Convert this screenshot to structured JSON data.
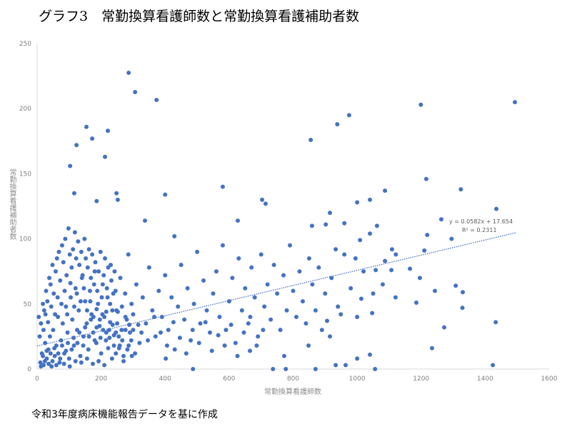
{
  "title": "グラフ3　常勤換算看護師数と常勤換算看護補助者数",
  "footer": "令和3年度病床機能報告データを基に作成",
  "chart_data": {
    "type": "scatter",
    "title": "グラフ3　常勤換算看護師数と常勤換算看護補助者数",
    "xlabel": "常勤換算看護師数",
    "ylabel": "常勤換算看護補助者数",
    "xlim": [
      0,
      1600
    ],
    "ylim": [
      0,
      250
    ],
    "xticks": [
      "0",
      "200",
      "400",
      "600",
      "800",
      "1000",
      "1200",
      "1400",
      "1600"
    ],
    "yticks": [
      "0",
      "50",
      "100",
      "150",
      "200",
      "250"
    ],
    "grid": false,
    "marker_color": "#4472C4",
    "trendline": {
      "type": "linear",
      "slope": 0.0582,
      "intercept": 17.654,
      "x_range": [
        0,
        1495
      ],
      "equation": "y = 0.0582x + 17.654",
      "r2": "R² = 0.2311",
      "color": "#4472C4"
    },
    "points": [
      [
        286,
        227.5
      ],
      [
        306,
        212.7
      ],
      [
        373,
        206.7
      ],
      [
        154,
        186
      ],
      [
        172,
        177
      ],
      [
        221,
        183
      ],
      [
        123,
        172
      ],
      [
        212,
        163
      ],
      [
        103,
        156
      ],
      [
        400,
        134
      ],
      [
        116,
        135
      ],
      [
        248,
        135
      ],
      [
        186,
        129
      ],
      [
        252,
        130
      ],
      [
        580,
        140
      ],
      [
        703,
        130
      ],
      [
        714,
        127
      ],
      [
        627,
        114
      ],
      [
        337,
        114
      ],
      [
        429,
        102
      ],
      [
        855,
        176
      ],
      [
        938,
        188
      ],
      [
        975,
        195
      ],
      [
        1199,
        203
      ],
      [
        1493,
        205
      ],
      [
        1216,
        146
      ],
      [
        1324,
        138
      ],
      [
        1435,
        123
      ],
      [
        1087,
        137
      ],
      [
        1000,
        128
      ],
      [
        1040,
        130
      ],
      [
        1263,
        115
      ],
      [
        1219,
        103
      ],
      [
        1295,
        100
      ],
      [
        1210,
        91
      ],
      [
        1121,
        88
      ],
      [
        1107,
        76
      ],
      [
        1165,
        77
      ],
      [
        1196,
        70
      ],
      [
        1120,
        55
      ],
      [
        1185,
        51
      ],
      [
        1243,
        60
      ],
      [
        1308,
        64
      ],
      [
        1330,
        59
      ],
      [
        1329,
        47
      ],
      [
        1272,
        32
      ],
      [
        1234,
        16
      ],
      [
        1433,
        36
      ],
      [
        1424,
        3
      ],
      [
        1056,
        0
      ],
      [
        1040,
        11
      ],
      [
        1000,
        8
      ],
      [
        964,
        3
      ],
      [
        933,
        3
      ],
      [
        870,
        0
      ],
      [
        915,
        25
      ],
      [
        1062,
        110
      ],
      [
        1040,
        104
      ],
      [
        1009,
        99
      ],
      [
        960,
        112
      ],
      [
        915,
        120
      ],
      [
        902,
        111
      ],
      [
        859,
        110
      ],
      [
        933,
        92
      ],
      [
        995,
        85
      ],
      [
        1058,
        76
      ],
      [
        1087,
        83
      ],
      [
        1109,
        92
      ],
      [
        1013,
        54
      ],
      [
        1047,
        43
      ],
      [
        949,
        42
      ],
      [
        906,
        37
      ],
      [
        848,
        18
      ],
      [
        772,
        10
      ],
      [
        777,
        0
      ],
      [
        737,
        0
      ],
      [
        665,
        14
      ],
      [
        487,
        0
      ],
      [
        402,
        8
      ],
      [
        10,
        5
      ],
      [
        15,
        12
      ],
      [
        20,
        3
      ],
      [
        25,
        20
      ],
      [
        30,
        8
      ],
      [
        35,
        15
      ],
      [
        40,
        25
      ],
      [
        45,
        2
      ],
      [
        50,
        30
      ],
      [
        55,
        10
      ],
      [
        60,
        18
      ],
      [
        65,
        40
      ],
      [
        70,
        5
      ],
      [
        75,
        22
      ],
      [
        80,
        35
      ],
      [
        85,
        12
      ],
      [
        90,
        48
      ],
      [
        95,
        28
      ],
      [
        100,
        8
      ],
      [
        105,
        55
      ],
      [
        110,
        38
      ],
      [
        115,
        18
      ],
      [
        120,
        62
      ],
      [
        125,
        30
      ],
      [
        130,
        45
      ],
      [
        135,
        10
      ],
      [
        140,
        70
      ],
      [
        145,
        25
      ],
      [
        150,
        52
      ],
      [
        155,
        35
      ],
      [
        160,
        15
      ],
      [
        165,
        60
      ],
      [
        170,
        42
      ],
      [
        175,
        28
      ],
      [
        180,
        75
      ],
      [
        185,
        20
      ],
      [
        190,
        50
      ],
      [
        195,
        33
      ],
      [
        200,
        12
      ],
      [
        205,
        65
      ],
      [
        210,
        40
      ],
      [
        215,
        22
      ],
      [
        220,
        55
      ],
      [
        225,
        30
      ],
      [
        230,
        80
      ],
      [
        235,
        45
      ],
      [
        240,
        18
      ],
      [
        245,
        60
      ],
      [
        250,
        35
      ],
      [
        255,
        25
      ],
      [
        260,
        70
      ],
      [
        265,
        48
      ],
      [
        270,
        10
      ],
      [
        275,
        58
      ],
      [
        280,
        38
      ],
      [
        285,
        88
      ],
      [
        290,
        28
      ],
      [
        295,
        50
      ],
      [
        300,
        42
      ],
      [
        310,
        65
      ],
      [
        320,
        20
      ],
      [
        330,
        55
      ],
      [
        340,
        35
      ],
      [
        350,
        78
      ],
      [
        360,
        45
      ],
      [
        370,
        25
      ],
      [
        380,
        60
      ],
      [
        390,
        40
      ],
      [
        400,
        72
      ],
      [
        410,
        30
      ],
      [
        420,
        55
      ],
      [
        430,
        15
      ],
      [
        440,
        48
      ],
      [
        450,
        80
      ],
      [
        460,
        38
      ],
      [
        470,
        62
      ],
      [
        480,
        22
      ],
      [
        490,
        50
      ],
      [
        500,
        90
      ],
      [
        510,
        35
      ],
      [
        520,
        68
      ],
      [
        530,
        45
      ],
      [
        540,
        28
      ],
      [
        550,
        58
      ],
      [
        560,
        75
      ],
      [
        570,
        40
      ],
      [
        580,
        95
      ],
      [
        590,
        30
      ],
      [
        600,
        52
      ],
      [
        610,
        70
      ],
      [
        620,
        20
      ],
      [
        630,
        85
      ],
      [
        640,
        45
      ],
      [
        650,
        62
      ],
      [
        660,
        35
      ],
      [
        670,
        78
      ],
      [
        680,
        55
      ],
      [
        690,
        25
      ],
      [
        700,
        88
      ],
      [
        710,
        48
      ],
      [
        720,
        65
      ],
      [
        730,
        38
      ],
      [
        740,
        80
      ],
      [
        750,
        58
      ],
      [
        760,
        30
      ],
      [
        770,
        72
      ],
      [
        780,
        45
      ],
      [
        790,
        95
      ],
      [
        800,
        60
      ],
      [
        810,
        40
      ],
      [
        820,
        75
      ],
      [
        830,
        52
      ],
      [
        840,
        35
      ],
      [
        850,
        85
      ],
      [
        860,
        65
      ],
      [
        870,
        45
      ],
      [
        880,
        78
      ],
      [
        890,
        30
      ],
      [
        900,
        58
      ],
      [
        920,
        70
      ],
      [
        940,
        48
      ],
      [
        960,
        88
      ],
      [
        980,
        62
      ],
      [
        1000,
        40
      ],
      [
        1020,
        75
      ],
      [
        1050,
        58
      ],
      [
        1080,
        65
      ],
      [
        5,
        40
      ],
      [
        8,
        25
      ],
      [
        12,
        35
      ],
      [
        18,
        50
      ],
      [
        22,
        45
      ],
      [
        28,
        60
      ],
      [
        32,
        52
      ],
      [
        38,
        70
      ],
      [
        42,
        65
      ],
      [
        48,
        80
      ],
      [
        52,
        58
      ],
      [
        58,
        75
      ],
      [
        62,
        85
      ],
      [
        68,
        90
      ],
      [
        72,
        68
      ],
      [
        78,
        95
      ],
      [
        82,
        82
      ],
      [
        88,
        100
      ],
      [
        92,
        72
      ],
      [
        98,
        108
      ],
      [
        102,
        88
      ],
      [
        108,
        78
      ],
      [
        112,
        92
      ],
      [
        118,
        105
      ],
      [
        122,
        85
      ],
      [
        128,
        98
      ],
      [
        132,
        80
      ],
      [
        138,
        90
      ],
      [
        142,
        72
      ],
      [
        148,
        100
      ],
      [
        152,
        85
      ],
      [
        158,
        78
      ],
      [
        162,
        92
      ],
      [
        168,
        70
      ],
      [
        172,
        88
      ],
      [
        178,
        65
      ],
      [
        182,
        82
      ],
      [
        188,
        60
      ],
      [
        192,
        75
      ],
      [
        198,
        90
      ],
      [
        202,
        55
      ],
      [
        208,
        72
      ],
      [
        212,
        85
      ],
      [
        218,
        62
      ],
      [
        222,
        78
      ],
      [
        228,
        50
      ],
      [
        232,
        68
      ],
      [
        238,
        58
      ],
      [
        242,
        75
      ],
      [
        248,
        45
      ],
      [
        12,
        2
      ],
      [
        18,
        10
      ],
      [
        24,
        6
      ],
      [
        30,
        14
      ],
      [
        36,
        4
      ],
      [
        42,
        12
      ],
      [
        48,
        6
      ],
      [
        54,
        16
      ],
      [
        60,
        3
      ],
      [
        66,
        12
      ],
      [
        72,
        8
      ],
      [
        78,
        18
      ],
      [
        84,
        4
      ],
      [
        90,
        14
      ],
      [
        96,
        20
      ],
      [
        102,
        2
      ],
      [
        108,
        15
      ],
      [
        114,
        24
      ],
      [
        120,
        6
      ],
      [
        126,
        20
      ],
      [
        132,
        28
      ],
      [
        138,
        5
      ],
      [
        144,
        18
      ],
      [
        150,
        32
      ],
      [
        156,
        8
      ],
      [
        162,
        25
      ],
      [
        168,
        38
      ],
      [
        174,
        4
      ],
      [
        180,
        22
      ],
      [
        186,
        32
      ],
      [
        192,
        6
      ],
      [
        198,
        24
      ],
      [
        204,
        42
      ],
      [
        210,
        3
      ],
      [
        216,
        28
      ],
      [
        222,
        16
      ],
      [
        228,
        36
      ],
      [
        234,
        8
      ],
      [
        240,
        26
      ],
      [
        246,
        12
      ],
      [
        252,
        44
      ],
      [
        258,
        18
      ],
      [
        264,
        30
      ],
      [
        270,
        6
      ],
      [
        276,
        40
      ],
      [
        282,
        15
      ],
      [
        288,
        34
      ],
      [
        294,
        22
      ],
      [
        300,
        30
      ],
      [
        306,
        12
      ],
      [
        20,
        30
      ],
      [
        26,
        42
      ],
      [
        34,
        36
      ],
      [
        44,
        48
      ],
      [
        56,
        42
      ],
      [
        64,
        55
      ],
      [
        76,
        50
      ],
      [
        86,
        60
      ],
      [
        94,
        42
      ],
      [
        104,
        66
      ],
      [
        116,
        48
      ],
      [
        124,
        58
      ],
      [
        136,
        52
      ],
      [
        146,
        62
      ],
      [
        156,
        45
      ],
      [
        166,
        52
      ],
      [
        176,
        40
      ],
      [
        186,
        46
      ],
      [
        196,
        38
      ],
      [
        206,
        30
      ],
      [
        216,
        44
      ],
      [
        226,
        24
      ],
      [
        236,
        34
      ],
      [
        246,
        28
      ],
      [
        256,
        16
      ],
      [
        266,
        22
      ],
      [
        276,
        30
      ],
      [
        286,
        18
      ],
      [
        296,
        10
      ],
      [
        316,
        34
      ],
      [
        326,
        28
      ],
      [
        346,
        22
      ],
      [
        366,
        40
      ],
      [
        386,
        28
      ],
      [
        406,
        18
      ],
      [
        426,
        36
      ],
      [
        446,
        24
      ],
      [
        466,
        12
      ],
      [
        486,
        30
      ],
      [
        506,
        20
      ],
      [
        526,
        36
      ],
      [
        546,
        14
      ],
      [
        566,
        26
      ],
      [
        586,
        18
      ],
      [
        606,
        34
      ],
      [
        626,
        10
      ],
      [
        646,
        28
      ],
      [
        666,
        40
      ],
      [
        686,
        18
      ],
      [
        706,
        30
      ]
    ]
  }
}
